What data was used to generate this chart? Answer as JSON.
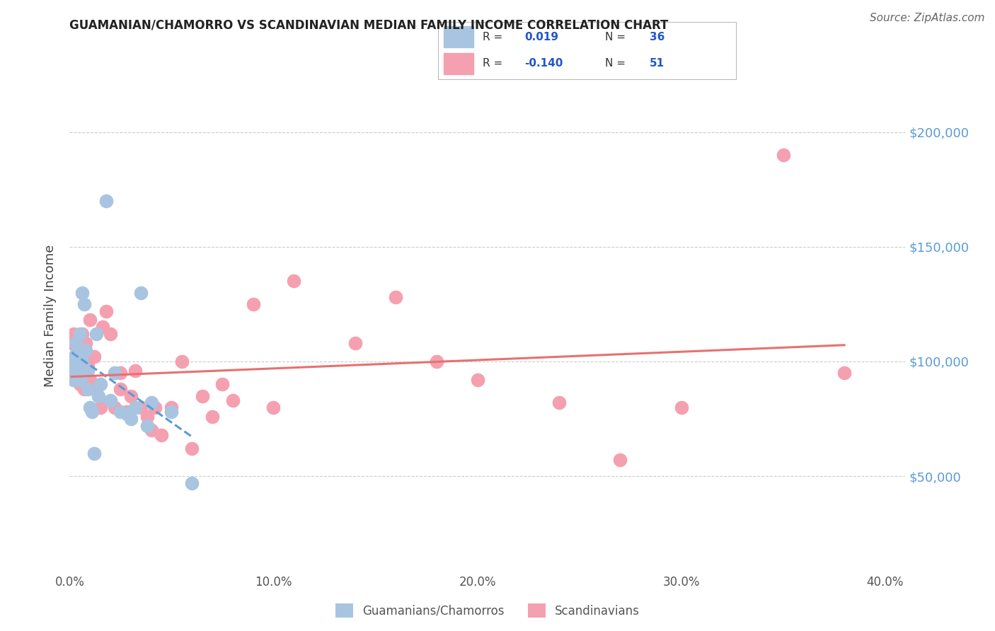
{
  "title": "GUAMANIAN/CHAMORRO VS SCANDINAVIAN MEDIAN FAMILY INCOME CORRELATION CHART",
  "source": "Source: ZipAtlas.com",
  "ylabel": "Median Family Income",
  "xlim": [
    0.0,
    0.41
  ],
  "ylim": [
    10000,
    230000
  ],
  "yticks": [
    50000,
    100000,
    150000,
    200000
  ],
  "ytick_labels": [
    "$50,000",
    "$100,000",
    "$150,000",
    "$200,000"
  ],
  "xticks": [
    0.0,
    0.1,
    0.2,
    0.3,
    0.4
  ],
  "xtick_labels": [
    "0.0%",
    "10.0%",
    "20.0%",
    "30.0%",
    "40.0%"
  ],
  "blue_label": "Guamanians/Chamorros",
  "pink_label": "Scandinavians",
  "blue_R": "0.019",
  "pink_R": "-0.140",
  "blue_N": "36",
  "pink_N": "51",
  "blue_color": "#a8c4e0",
  "pink_color": "#f4a0b0",
  "blue_line_color": "#5b9bd5",
  "pink_line_color": "#e87070",
  "legend_R_color": "#2255cc",
  "background_color": "#ffffff",
  "grid_color": "#cccccc",
  "blue_x": [
    0.001,
    0.002,
    0.002,
    0.003,
    0.003,
    0.003,
    0.004,
    0.004,
    0.005,
    0.005,
    0.005,
    0.006,
    0.006,
    0.007,
    0.007,
    0.008,
    0.009,
    0.009,
    0.01,
    0.011,
    0.012,
    0.013,
    0.014,
    0.015,
    0.018,
    0.02,
    0.022,
    0.025,
    0.028,
    0.03,
    0.032,
    0.035,
    0.038,
    0.04,
    0.05,
    0.06
  ],
  "blue_y": [
    98000,
    92000,
    100000,
    95000,
    103000,
    108000,
    97000,
    105000,
    92000,
    100000,
    112000,
    130000,
    100000,
    95000,
    125000,
    105000,
    88000,
    96000,
    80000,
    78000,
    60000,
    112000,
    85000,
    90000,
    170000,
    83000,
    95000,
    78000,
    77000,
    75000,
    80000,
    130000,
    72000,
    82000,
    78000,
    47000
  ],
  "pink_x": [
    0.001,
    0.002,
    0.003,
    0.004,
    0.005,
    0.005,
    0.006,
    0.006,
    0.007,
    0.007,
    0.008,
    0.008,
    0.009,
    0.01,
    0.01,
    0.012,
    0.013,
    0.015,
    0.016,
    0.018,
    0.02,
    0.022,
    0.025,
    0.025,
    0.028,
    0.03,
    0.032,
    0.035,
    0.038,
    0.04,
    0.042,
    0.045,
    0.05,
    0.055,
    0.06,
    0.065,
    0.07,
    0.075,
    0.08,
    0.09,
    0.1,
    0.11,
    0.14,
    0.16,
    0.18,
    0.2,
    0.24,
    0.27,
    0.3,
    0.35,
    0.38
  ],
  "pink_y": [
    108000,
    112000,
    95000,
    102000,
    90000,
    105000,
    97000,
    112000,
    88000,
    103000,
    95000,
    108000,
    98000,
    118000,
    92000,
    102000,
    88000,
    80000,
    115000,
    122000,
    112000,
    80000,
    88000,
    95000,
    78000,
    85000,
    96000,
    80000,
    76000,
    70000,
    80000,
    68000,
    80000,
    100000,
    62000,
    85000,
    76000,
    90000,
    83000,
    125000,
    80000,
    135000,
    108000,
    128000,
    100000,
    92000,
    82000,
    57000,
    80000,
    190000,
    95000
  ]
}
